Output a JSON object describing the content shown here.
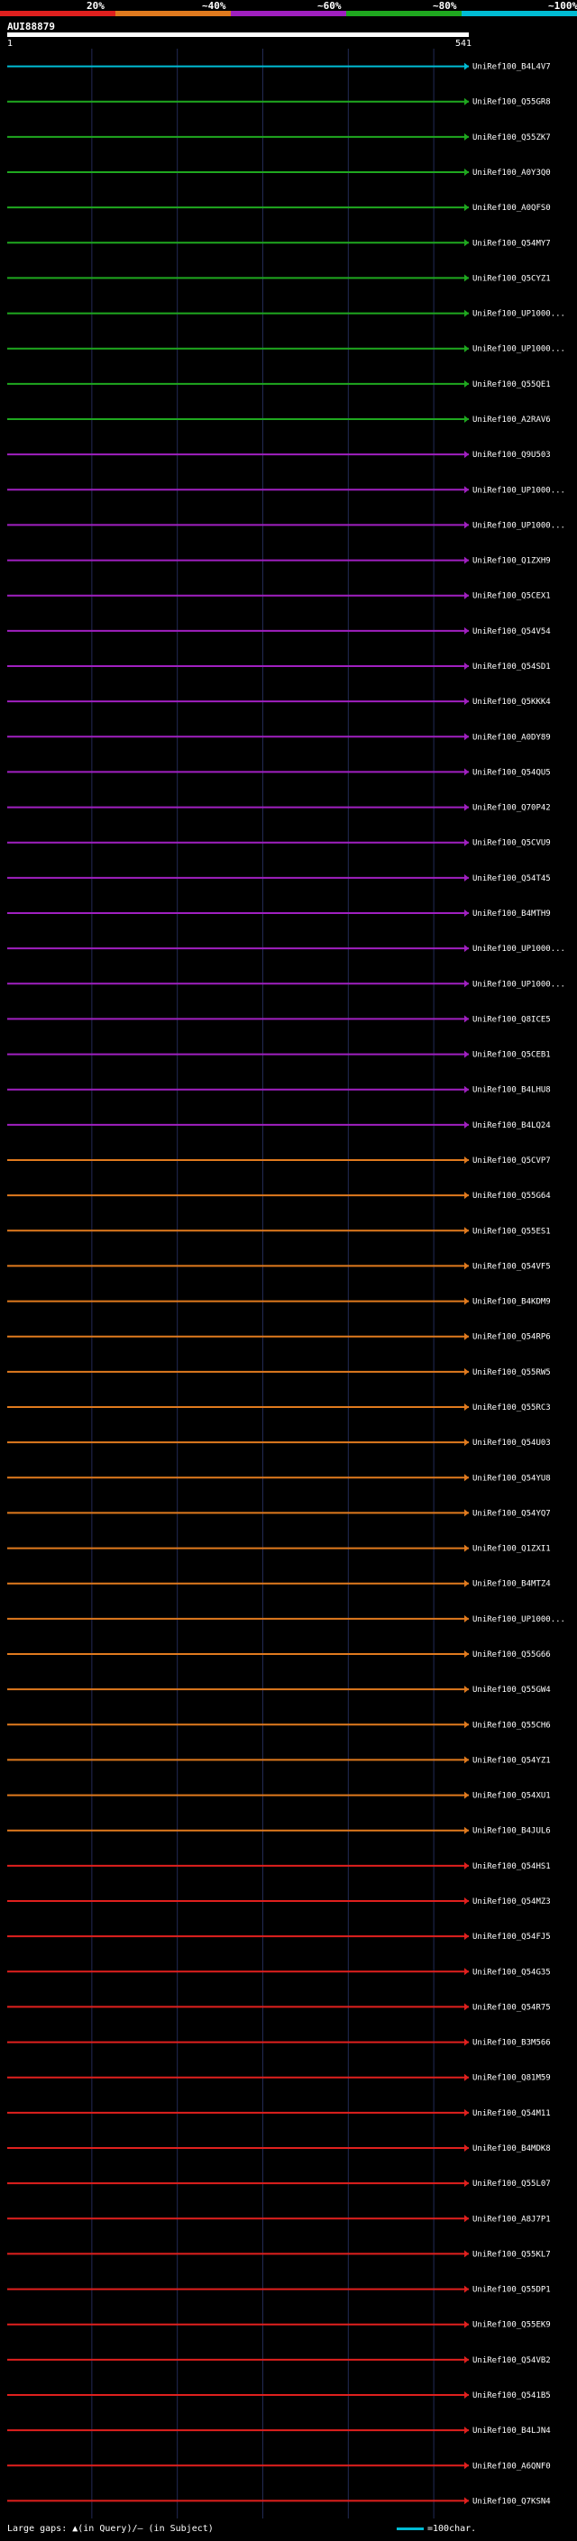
{
  "legend": {
    "labels": [
      "20%",
      "~40%",
      "~60%",
      "~80%",
      "~100%"
    ],
    "colors": [
      "#e0201e",
      "#e07a1e",
      "#a020c0",
      "#1fa81f",
      "#00bcd4"
    ]
  },
  "query": {
    "id": "AUI88879",
    "start_label": "1",
    "end_label": "541"
  },
  "footer": {
    "text": "Large gaps: ▲(in Query)/— (in Subject)",
    "scale_label": "=100char."
  },
  "chart_data": {
    "type": "alignment-overview",
    "title": "AUI88879",
    "x_range": [
      1,
      541
    ],
    "hits": [
      {
        "name": "UniRef100_B4L4V7",
        "s": 1,
        "e": 541,
        "pct": 82,
        "qs": 1
      },
      {
        "name": "UniRef100_Q55GR8",
        "s": 1,
        "e": 541,
        "pct": 78,
        "qs": 1
      },
      {
        "name": "UniRef100_Q55ZK7",
        "s": 1,
        "e": 541,
        "pct": 75,
        "qs": 1
      },
      {
        "name": "UniRef100_A0Y3Q0",
        "s": 1,
        "e": 541,
        "pct": 72,
        "qs": 1
      },
      {
        "name": "UniRef100_A0QFS0",
        "s": 1,
        "e": 541,
        "pct": 70,
        "qs": 1
      },
      {
        "name": "UniRef100_Q54MY7",
        "s": 1,
        "e": 541,
        "pct": 68,
        "qs": 1
      },
      {
        "name": "UniRef100_Q5CYZ1",
        "s": 1,
        "e": 541,
        "pct": 66,
        "qs": 1
      },
      {
        "name": "UniRef100_UP1000...",
        "s": 1,
        "e": 541,
        "pct": 64,
        "qs": 1
      },
      {
        "name": "UniRef100_UP1000...",
        "s": 1,
        "e": 541,
        "pct": 62,
        "qs": 1
      },
      {
        "name": "UniRef100_Q55QE1",
        "s": 1,
        "e": 541,
        "pct": 61,
        "qs": 1
      },
      {
        "name": "UniRef100_A2RAV6",
        "s": 1,
        "e": 541,
        "pct": 60,
        "qs": 1
      },
      {
        "name": "UniRef100_Q9U503",
        "s": 1,
        "e": 541,
        "pct": 59,
        "qs": 1
      },
      {
        "name": "UniRef100_UP1000...",
        "s": 1,
        "e": 541,
        "pct": 58,
        "qs": 1
      },
      {
        "name": "UniRef100_UP1000...",
        "s": 1,
        "e": 541,
        "pct": 57,
        "qs": 1
      },
      {
        "name": "UniRef100_Q1ZXH9",
        "s": 1,
        "e": 541,
        "pct": 56,
        "qs": 1
      },
      {
        "name": "UniRef100_Q5CEX1",
        "s": 1,
        "e": 541,
        "pct": 55,
        "qs": 1
      },
      {
        "name": "UniRef100_Q54V54",
        "s": 1,
        "e": 541,
        "pct": 54,
        "qs": 1
      },
      {
        "name": "UniRef100_Q54SD1",
        "s": 1,
        "e": 541,
        "pct": 53,
        "qs": 1
      },
      {
        "name": "UniRef100_Q5KKK4",
        "s": 1,
        "e": 541,
        "pct": 52,
        "qs": 1
      },
      {
        "name": "UniRef100_A0DY89",
        "s": 1,
        "e": 541,
        "pct": 51,
        "qs": 1
      },
      {
        "name": "UniRef100_Q54QU5",
        "s": 1,
        "e": 541,
        "pct": 50,
        "qs": 1
      },
      {
        "name": "UniRef100_Q70P42",
        "s": 1,
        "e": 541,
        "pct": 49,
        "qs": 1
      },
      {
        "name": "UniRef100_Q5CVU9",
        "s": 1,
        "e": 541,
        "pct": 48,
        "qs": 1
      },
      {
        "name": "UniRef100_Q54T45",
        "s": 1,
        "e": 541,
        "pct": 47,
        "qs": 1
      },
      {
        "name": "UniRef100_B4MTH9",
        "s": 1,
        "e": 541,
        "pct": 46,
        "qs": 1
      },
      {
        "name": "UniRef100_UP1000...",
        "s": 1,
        "e": 541,
        "pct": 45,
        "qs": 1
      },
      {
        "name": "UniRef100_UP1000...",
        "s": 1,
        "e": 541,
        "pct": 44,
        "qs": 1
      },
      {
        "name": "UniRef100_Q8ICE5",
        "s": 1,
        "e": 541,
        "pct": 43,
        "qs": 1
      },
      {
        "name": "UniRef100_Q5CEB1",
        "s": 1,
        "e": 541,
        "pct": 42,
        "qs": 1
      },
      {
        "name": "UniRef100_B4LHU8",
        "s": 1,
        "e": 541,
        "pct": 41,
        "qs": 1
      },
      {
        "name": "UniRef100_B4LQ24",
        "s": 1,
        "e": 541,
        "pct": 40,
        "qs": 1
      },
      {
        "name": "UniRef100_Q5CVP7",
        "s": 1,
        "e": 541,
        "pct": 39,
        "qs": 1
      },
      {
        "name": "UniRef100_Q55G64",
        "s": 1,
        "e": 541,
        "pct": 38,
        "qs": 1
      },
      {
        "name": "UniRef100_Q55ES1",
        "s": 1,
        "e": 541,
        "pct": 37,
        "qs": 1
      },
      {
        "name": "UniRef100_Q54VF5",
        "s": 1,
        "e": 541,
        "pct": 36,
        "qs": 1
      },
      {
        "name": "UniRef100_B4KDM9",
        "s": 1,
        "e": 541,
        "pct": 35,
        "qs": 1
      },
      {
        "name": "UniRef100_Q54RP6",
        "s": 1,
        "e": 541,
        "pct": 34,
        "qs": 1
      },
      {
        "name": "UniRef100_Q55RW5",
        "s": 1,
        "e": 541,
        "pct": 33,
        "qs": 1
      },
      {
        "name": "UniRef100_Q55RC3",
        "s": 1,
        "e": 541,
        "pct": 32,
        "qs": 1
      },
      {
        "name": "UniRef100_Q54U03",
        "s": 1,
        "e": 541,
        "pct": 31,
        "qs": 1
      },
      {
        "name": "UniRef100_Q54YU8",
        "s": 1,
        "e": 541,
        "pct": 30,
        "qs": 1
      },
      {
        "name": "UniRef100_Q54YQ7",
        "s": 1,
        "e": 541,
        "pct": 29,
        "qs": 1
      },
      {
        "name": "UniRef100_Q1ZXI1",
        "s": 1,
        "e": 541,
        "pct": 28,
        "qs": 1
      },
      {
        "name": "UniRef100_B4MTZ4",
        "s": 1,
        "e": 541,
        "pct": 27,
        "qs": 1
      },
      {
        "name": "UniRef100_UP1000...",
        "s": 1,
        "e": 541,
        "pct": 26,
        "qs": 1
      },
      {
        "name": "UniRef100_Q55G66",
        "s": 1,
        "e": 541,
        "pct": 25,
        "qs": 1
      },
      {
        "name": "UniRef100_Q55GW4",
        "s": 1,
        "e": 541,
        "pct": 24,
        "qs": 1
      },
      {
        "name": "UniRef100_Q55CH6",
        "s": 1,
        "e": 541,
        "pct": 23,
        "qs": 1
      },
      {
        "name": "UniRef100_Q54YZ1",
        "s": 1,
        "e": 541,
        "pct": 22,
        "qs": 1
      },
      {
        "name": "UniRef100_Q54XU1",
        "s": 1,
        "e": 541,
        "pct": 21,
        "qs": 1
      },
      {
        "name": "UniRef100_B4JUL6",
        "s": 1,
        "e": 541,
        "pct": 20,
        "qs": 1
      },
      {
        "name": "UniRef100_Q54HS1",
        "s": 1,
        "e": 541,
        "pct": 19,
        "qs": 1
      },
      {
        "name": "UniRef100_Q54MZ3",
        "s": 1,
        "e": 541,
        "pct": 18,
        "qs": 1
      },
      {
        "name": "UniRef100_Q54FJ5",
        "s": 1,
        "e": 541,
        "pct": 17,
        "qs": 1
      },
      {
        "name": "UniRef100_Q54G35",
        "s": 1,
        "e": 541,
        "pct": 16,
        "qs": 1
      },
      {
        "name": "UniRef100_Q54R75",
        "s": 1,
        "e": 541,
        "pct": 15,
        "qs": 1
      },
      {
        "name": "UniRef100_B3M566",
        "s": 1,
        "e": 541,
        "pct": 14,
        "qs": 1
      },
      {
        "name": "UniRef100_Q81M59",
        "s": 1,
        "e": 541,
        "pct": 13,
        "qs": 1
      },
      {
        "name": "UniRef100_Q54M11",
        "s": 1,
        "e": 541,
        "pct": 12,
        "qs": 1
      },
      {
        "name": "UniRef100_B4MDK8",
        "s": 1,
        "e": 541,
        "pct": 11,
        "qs": 1
      },
      {
        "name": "UniRef100_Q55L07",
        "s": 1,
        "e": 541,
        "pct": 10,
        "qs": 1
      },
      {
        "name": "UniRef100_A8J7P1",
        "s": 1,
        "e": 541,
        "pct": 9,
        "qs": 1
      },
      {
        "name": "UniRef100_Q55KL7",
        "s": 1,
        "e": 541,
        "pct": 8,
        "qs": 1
      },
      {
        "name": "UniRef100_Q55DP1",
        "s": 1,
        "e": 541,
        "pct": 7,
        "qs": 1
      },
      {
        "name": "UniRef100_Q55EK9",
        "s": 1,
        "e": 541,
        "pct": 6,
        "qs": 1
      },
      {
        "name": "UniRef100_Q54VB2",
        "s": 1,
        "e": 541,
        "pct": 5,
        "qs": 1
      },
      {
        "name": "UniRef100_Q541B5",
        "s": 1,
        "e": 541,
        "pct": 4,
        "qs": 1
      },
      {
        "name": "UniRef100_B4LJN4",
        "s": 1,
        "e": 541,
        "pct": 3,
        "qs": 1
      },
      {
        "name": "UniRef100_A6QNF0",
        "s": 1,
        "e": 541,
        "pct": 2,
        "qs": 1
      },
      {
        "name": "UniRef100_Q7KSN4",
        "s": 1,
        "e": 541,
        "pct": 1,
        "qs": 1
      }
    ]
  }
}
